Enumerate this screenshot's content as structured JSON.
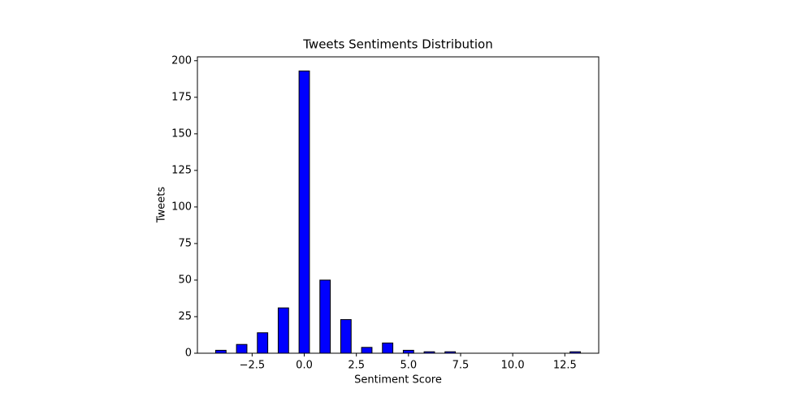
{
  "chart_data": {
    "type": "bar",
    "title": "Tweets Sentiments Distribution",
    "x_label": "Sentiment Score",
    "y_label": "Tweets",
    "x": [
      -4,
      -3,
      -2,
      -1,
      0,
      1,
      2,
      3,
      4,
      5,
      6,
      7,
      13
    ],
    "values": [
      2,
      6,
      14,
      31,
      193,
      50,
      23,
      4,
      7,
      2,
      1,
      1,
      1
    ],
    "color": "#0000ff",
    "edge_color": "#000000",
    "xlim": [
      -5.125,
      14.125
    ],
    "xticks": [
      {
        "value": -2.5,
        "label": "−2.5"
      },
      {
        "value": 0,
        "label": "0.0"
      },
      {
        "value": 2.5,
        "label": "2.5"
      },
      {
        "value": 5,
        "label": "5.0"
      },
      {
        "value": 7.5,
        "label": "7.5"
      },
      {
        "value": 10,
        "label": "10.0"
      },
      {
        "value": 12.5,
        "label": "12.5"
      }
    ],
    "ylim": [
      0,
      202.65
    ],
    "yticks": [
      0,
      25,
      50,
      75,
      100,
      125,
      150,
      175,
      200
    ],
    "grid": false
  }
}
